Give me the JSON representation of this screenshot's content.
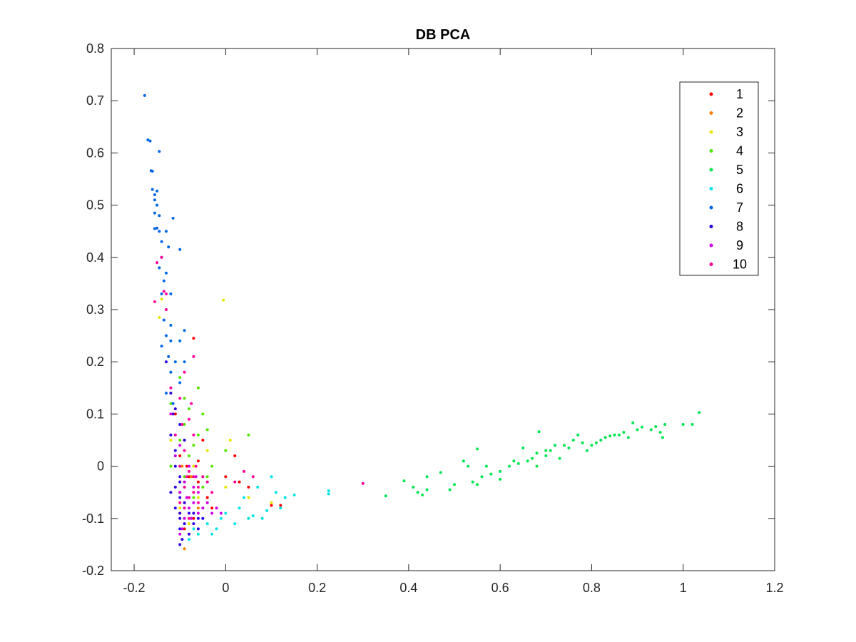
{
  "chart_data": {
    "type": "scatter",
    "title": "DB PCA",
    "xlabel": "",
    "ylabel": "",
    "xlim": [
      -0.25,
      1.2
    ],
    "ylim": [
      -0.2,
      0.8
    ],
    "xticks": [
      -0.2,
      0,
      0.2,
      0.4,
      0.6,
      0.8,
      1,
      1.2
    ],
    "xtick_labels": [
      "-0.2",
      "0",
      "0.2",
      "0.4",
      "0.6",
      "0.8",
      "1",
      "1.2"
    ],
    "yticks": [
      -0.2,
      -0.1,
      0,
      0.1,
      0.2,
      0.3,
      0.4,
      0.5,
      0.6,
      0.7,
      0.8
    ],
    "ytick_labels": [
      "-0.2",
      "-0.1",
      "0",
      "0.1",
      "0.2",
      "0.3",
      "0.4",
      "0.5",
      "0.6",
      "0.7",
      "0.8"
    ],
    "grid": false,
    "legend_position": "top-right",
    "series": [
      {
        "name": "1",
        "color": "#ff0000",
        "points": [
          [
            -0.07,
            0.245
          ],
          [
            -0.1,
            0.02
          ],
          [
            -0.08,
            -0.02
          ],
          [
            -0.06,
            -0.03
          ],
          [
            -0.05,
            0.05
          ],
          [
            -0.04,
            -0.06
          ],
          [
            0.02,
            0.02
          ],
          [
            0.05,
            -0.04
          ],
          [
            0.1,
            -0.075
          ],
          [
            0.12,
            -0.075
          ],
          [
            -0.09,
            -0.07
          ],
          [
            -0.11,
            0.1
          ],
          [
            -0.085,
            0.0
          ],
          [
            -0.03,
            -0.08
          ],
          [
            0.0,
            -0.02
          ],
          [
            -0.07,
            -0.1
          ],
          [
            -0.09,
            -0.12
          ],
          [
            -0.06,
            0.01
          ],
          [
            0.03,
            -0.03
          ],
          [
            -0.1,
            -0.05
          ]
        ]
      },
      {
        "name": "2",
        "color": "#ff8000",
        "points": [
          [
            -0.09,
            -0.158
          ],
          [
            -0.08,
            -0.1
          ],
          [
            -0.1,
            -0.03
          ],
          [
            -0.07,
            -0.05
          ],
          [
            -0.095,
            0.0
          ],
          [
            -0.06,
            -0.08
          ],
          [
            -0.08,
            -0.13
          ],
          [
            -0.1,
            -0.09
          ],
          [
            -0.085,
            -0.06
          ],
          [
            -0.075,
            -0.02
          ]
        ]
      },
      {
        "name": "3",
        "color": "#e6e600",
        "points": [
          [
            -0.005,
            0.318
          ],
          [
            -0.14,
            0.32
          ],
          [
            -0.145,
            0.285
          ],
          [
            0.01,
            0.05
          ],
          [
            0.05,
            -0.06
          ],
          [
            0.1,
            -0.07
          ],
          [
            -0.05,
            -0.02
          ],
          [
            -0.09,
            -0.04
          ],
          [
            -0.07,
            0.0
          ],
          [
            -0.1,
            -0.08
          ],
          [
            -0.08,
            -0.11
          ],
          [
            0.0,
            -0.04
          ],
          [
            -0.06,
            -0.06
          ],
          [
            -0.12,
            0.05
          ],
          [
            -0.04,
            0.03
          ]
        ]
      },
      {
        "name": "4",
        "color": "#55e600",
        "points": [
          [
            -0.06,
            0.15
          ],
          [
            -0.05,
            0.1
          ],
          [
            -0.09,
            0.08
          ],
          [
            -0.1,
            0.05
          ],
          [
            -0.12,
            0.12
          ],
          [
            -0.08,
            0.02
          ],
          [
            -0.07,
            0.04
          ],
          [
            -0.04,
            0.07
          ],
          [
            0.05,
            0.06
          ],
          [
            0.0,
            0.03
          ],
          [
            -0.11,
            0.2
          ],
          [
            -0.1,
            0.17
          ],
          [
            -0.09,
            -0.02
          ],
          [
            -0.06,
            0.06
          ],
          [
            -0.03,
            0.0
          ],
          [
            -0.08,
            0.11
          ],
          [
            -0.05,
            -0.04
          ],
          [
            -0.1,
            0.0
          ],
          [
            -0.07,
            -0.06
          ],
          [
            -0.12,
            0.0
          ],
          [
            -0.09,
            0.13
          ],
          [
            -0.04,
            -0.02
          ]
        ]
      },
      {
        "name": "5",
        "color": "#00e650",
        "points": [
          [
            0.35,
            -0.057
          ],
          [
            0.39,
            -0.028
          ],
          [
            0.41,
            -0.04
          ],
          [
            0.42,
            -0.05
          ],
          [
            0.43,
            -0.055
          ],
          [
            0.44,
            -0.045
          ],
          [
            0.44,
            -0.02
          ],
          [
            0.47,
            -0.012
          ],
          [
            0.49,
            -0.045
          ],
          [
            0.5,
            -0.035
          ],
          [
            0.52,
            0.01
          ],
          [
            0.53,
            0.0
          ],
          [
            0.54,
            -0.03
          ],
          [
            0.55,
            -0.035
          ],
          [
            0.55,
            0.033
          ],
          [
            0.56,
            -0.02
          ],
          [
            0.57,
            0.0
          ],
          [
            0.58,
            -0.015
          ],
          [
            0.6,
            -0.025
          ],
          [
            0.6,
            -0.01
          ],
          [
            0.62,
            0.0
          ],
          [
            0.63,
            0.01
          ],
          [
            0.64,
            0.005
          ],
          [
            0.65,
            0.035
          ],
          [
            0.66,
            0.01
          ],
          [
            0.67,
            0.015
          ],
          [
            0.68,
            0.0
          ],
          [
            0.68,
            0.025
          ],
          [
            0.685,
            0.066
          ],
          [
            0.7,
            0.03
          ],
          [
            0.7,
            0.02
          ],
          [
            0.71,
            0.03
          ],
          [
            0.72,
            0.04
          ],
          [
            0.73,
            0.015
          ],
          [
            0.74,
            0.04
          ],
          [
            0.75,
            0.035
          ],
          [
            0.76,
            0.05
          ],
          [
            0.77,
            0.06
          ],
          [
            0.78,
            0.045
          ],
          [
            0.8,
            0.04
          ],
          [
            0.81,
            0.045
          ],
          [
            0.82,
            0.05
          ],
          [
            0.83,
            0.055
          ],
          [
            0.84,
            0.058
          ],
          [
            0.85,
            0.06
          ],
          [
            0.86,
            0.06
          ],
          [
            0.87,
            0.065
          ],
          [
            0.89,
            0.083
          ],
          [
            0.9,
            0.07
          ],
          [
            0.91,
            0.075
          ],
          [
            0.93,
            0.07
          ],
          [
            0.94,
            0.076
          ],
          [
            0.95,
            0.065
          ],
          [
            0.96,
            0.08
          ],
          [
            0.955,
            0.055
          ],
          [
            1.0,
            0.08
          ],
          [
            1.02,
            0.08
          ],
          [
            1.035,
            0.103
          ],
          [
            0.88,
            0.055
          ],
          [
            0.79,
            0.03
          ]
        ]
      },
      {
        "name": "6",
        "color": "#00e6e6",
        "points": [
          [
            0.225,
            -0.047
          ],
          [
            0.225,
            -0.053
          ],
          [
            0.11,
            -0.05
          ],
          [
            0.1,
            -0.02
          ],
          [
            0.15,
            -0.055
          ],
          [
            0.13,
            -0.06
          ],
          [
            0.06,
            -0.095
          ],
          [
            0.08,
            -0.1
          ],
          [
            0.05,
            -0.1
          ],
          [
            0.02,
            -0.11
          ],
          [
            -0.02,
            -0.12
          ],
          [
            -0.04,
            -0.11
          ],
          [
            -0.06,
            -0.13
          ],
          [
            -0.07,
            -0.12
          ],
          [
            0.0,
            -0.09
          ],
          [
            0.04,
            -0.06
          ],
          [
            0.09,
            -0.085
          ],
          [
            -0.05,
            -0.1
          ],
          [
            -0.01,
            -0.1
          ],
          [
            0.03,
            -0.08
          ],
          [
            -0.03,
            -0.13
          ],
          [
            0.07,
            -0.04
          ],
          [
            -0.08,
            -0.14
          ],
          [
            0.12,
            -0.08
          ]
        ]
      },
      {
        "name": "7",
        "color": "#0066e6",
        "points": [
          [
            -0.177,
            0.71
          ],
          [
            -0.17,
            0.625
          ],
          [
            -0.165,
            0.623
          ],
          [
            -0.163,
            0.566
          ],
          [
            -0.16,
            0.565
          ],
          [
            -0.145,
            0.603
          ],
          [
            -0.16,
            0.53
          ],
          [
            -0.155,
            0.52
          ],
          [
            -0.15,
            0.527
          ],
          [
            -0.155,
            0.51
          ],
          [
            -0.15,
            0.5
          ],
          [
            -0.155,
            0.485
          ],
          [
            -0.145,
            0.48
          ],
          [
            -0.15,
            0.456
          ],
          [
            -0.155,
            0.455
          ],
          [
            -0.145,
            0.45
          ],
          [
            -0.115,
            0.475
          ],
          [
            -0.1,
            0.415
          ],
          [
            -0.14,
            0.43
          ],
          [
            -0.13,
            0.45
          ],
          [
            -0.125,
            0.42
          ],
          [
            -0.14,
            0.4
          ],
          [
            -0.145,
            0.38
          ],
          [
            -0.13,
            0.37
          ],
          [
            -0.135,
            0.355
          ],
          [
            -0.14,
            0.33
          ],
          [
            -0.12,
            0.33
          ],
          [
            -0.13,
            0.3
          ],
          [
            -0.12,
            0.27
          ],
          [
            -0.135,
            0.28
          ],
          [
            -0.13,
            0.25
          ],
          [
            -0.12,
            0.24
          ],
          [
            -0.1,
            0.24
          ],
          [
            -0.09,
            0.26
          ],
          [
            -0.11,
            0.2
          ],
          [
            -0.12,
            0.18
          ],
          [
            -0.1,
            0.16
          ],
          [
            -0.13,
            0.14
          ],
          [
            -0.09,
            0.2
          ],
          [
            -0.115,
            0.12
          ],
          [
            -0.14,
            0.23
          ],
          [
            -0.125,
            0.21
          ]
        ]
      },
      {
        "name": "8",
        "color": "#2d00e6",
        "points": [
          [
            -0.1,
            -0.15
          ],
          [
            -0.095,
            -0.14
          ],
          [
            -0.1,
            -0.12
          ],
          [
            -0.09,
            -0.11
          ],
          [
            -0.1,
            -0.1
          ],
          [
            -0.11,
            -0.08
          ],
          [
            -0.1,
            -0.06
          ],
          [
            -0.11,
            -0.04
          ],
          [
            -0.1,
            -0.02
          ],
          [
            -0.11,
            0.0
          ],
          [
            -0.12,
            0.06
          ],
          [
            -0.115,
            0.1
          ],
          [
            -0.12,
            0.14
          ],
          [
            -0.13,
            0.2
          ],
          [
            -0.08,
            -0.09
          ],
          [
            -0.08,
            -0.13
          ],
          [
            -0.07,
            -0.11
          ],
          [
            -0.06,
            -0.1
          ],
          [
            -0.1,
            -0.09
          ],
          [
            -0.09,
            -0.07
          ],
          [
            -0.09,
            0.05
          ],
          [
            -0.1,
            0.08
          ],
          [
            -0.11,
            0.11
          ],
          [
            -0.12,
            -0.05
          ],
          [
            -0.08,
            -0.06
          ],
          [
            -0.07,
            -0.09
          ],
          [
            -0.06,
            -0.12
          ],
          [
            -0.05,
            -0.1
          ],
          [
            -0.1,
            -0.03
          ],
          [
            -0.11,
            0.03
          ]
        ]
      },
      {
        "name": "9",
        "color": "#cc00e6",
        "points": [
          [
            -0.1,
            -0.13
          ],
          [
            -0.09,
            -0.1
          ],
          [
            -0.08,
            -0.08
          ],
          [
            -0.07,
            -0.07
          ],
          [
            -0.06,
            -0.09
          ],
          [
            -0.05,
            -0.08
          ],
          [
            -0.04,
            -0.07
          ],
          [
            -0.03,
            -0.09
          ],
          [
            -0.02,
            -0.08
          ],
          [
            -0.01,
            -0.09
          ],
          [
            -0.1,
            -0.05
          ],
          [
            -0.09,
            -0.03
          ],
          [
            -0.08,
            0.0
          ],
          [
            -0.07,
            -0.04
          ],
          [
            -0.06,
            -0.05
          ],
          [
            -0.11,
            0.02
          ],
          [
            -0.1,
            0.04
          ],
          [
            -0.12,
            0.1
          ],
          [
            -0.095,
            -0.12
          ],
          [
            -0.075,
            -0.1
          ],
          [
            -0.085,
            -0.06
          ],
          [
            -0.065,
            -0.02
          ]
        ]
      },
      {
        "name": "10",
        "color": "#ff0099",
        "points": [
          [
            -0.14,
            0.4
          ],
          [
            -0.15,
            0.39
          ],
          [
            -0.135,
            0.335
          ],
          [
            -0.13,
            0.33
          ],
          [
            -0.155,
            0.315
          ],
          [
            -0.13,
            0.3
          ],
          [
            -0.07,
            0.21
          ],
          [
            -0.09,
            0.18
          ],
          [
            -0.1,
            0.13
          ],
          [
            -0.08,
            0.09
          ],
          [
            -0.07,
            0.06
          ],
          [
            -0.09,
            0.03
          ],
          [
            -0.1,
            0.0
          ],
          [
            -0.08,
            -0.01
          ],
          [
            -0.07,
            -0.02
          ],
          [
            -0.09,
            -0.04
          ],
          [
            -0.08,
            -0.06
          ],
          [
            -0.07,
            -0.05
          ],
          [
            -0.06,
            -0.04
          ],
          [
            -0.05,
            -0.02
          ],
          [
            -0.04,
            -0.03
          ],
          [
            -0.03,
            -0.05
          ],
          [
            0.02,
            -0.03
          ],
          [
            0.04,
            -0.01
          ],
          [
            0.06,
            -0.02
          ],
          [
            0.3,
            -0.033
          ],
          [
            -0.1,
            -0.07
          ],
          [
            -0.09,
            -0.08
          ],
          [
            -0.08,
            -0.1
          ],
          [
            -0.06,
            -0.07
          ],
          [
            -0.11,
            0.06
          ],
          [
            -0.095,
            0.08
          ],
          [
            -0.075,
            0.12
          ],
          [
            -0.085,
            -0.02
          ],
          [
            -0.065,
            0.0
          ],
          [
            -0.12,
            0.15
          ]
        ]
      }
    ]
  }
}
